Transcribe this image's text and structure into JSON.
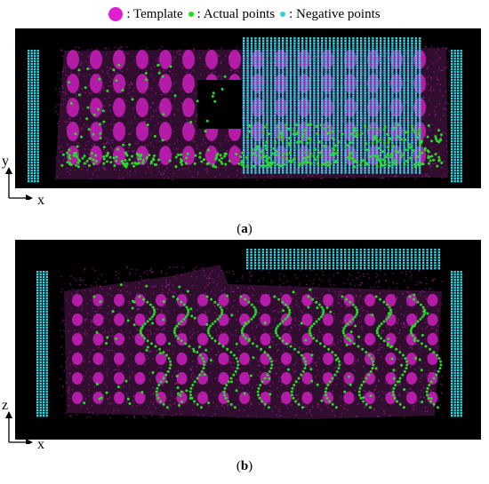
{
  "legend": {
    "template_label": ": Template",
    "actual_label": ": Actual points",
    "negative_label": ": Negative points",
    "colors": {
      "template": "#e020d0",
      "actual": "#22dd22",
      "negative": "#33d0e0",
      "background": "#000000"
    }
  },
  "panel_a": {
    "caption_open": "(",
    "caption_letter": "a",
    "caption_close": ")",
    "vertical_axis": "y",
    "horizontal_axis": "x"
  },
  "panel_b": {
    "caption_open": "(",
    "caption_letter": "b",
    "caption_close": ")",
    "vertical_axis": "z",
    "horizontal_axis": "x"
  }
}
